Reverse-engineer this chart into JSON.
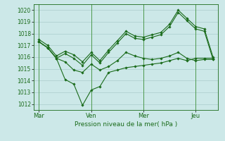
{
  "title": "Pression niveau de la mer( hPa )",
  "ylim": [
    1011.5,
    1020.5
  ],
  "yticks": [
    1012,
    1013,
    1014,
    1015,
    1016,
    1017,
    1018,
    1019,
    1020
  ],
  "bg_color": "#cce8e8",
  "grid_color": "#aacccc",
  "line_color": "#1a6b1a",
  "vline_color": "#4d9a4d",
  "day_labels": [
    "Mar",
    "Ven",
    "Mer",
    "Jeu"
  ],
  "day_positions": [
    0,
    3,
    6,
    9
  ],
  "xlim": [
    -0.3,
    10.3
  ],
  "series": [
    {
      "x": [
        0,
        0.5,
        1,
        1.5,
        2,
        2.5,
        3,
        3.5,
        4,
        4.5,
        5,
        5.5,
        6,
        6.5,
        7,
        7.5,
        8,
        8.5,
        9,
        9.5,
        10
      ],
      "y": [
        1017.5,
        1017.0,
        1016.1,
        1016.5,
        1016.2,
        1015.6,
        1016.4,
        1015.7,
        1016.6,
        1017.4,
        1018.2,
        1017.8,
        1017.7,
        1017.9,
        1018.1,
        1018.8,
        1020.0,
        1019.3,
        1018.6,
        1018.4,
        1016.0
      ]
    },
    {
      "x": [
        0,
        0.5,
        1,
        1.5,
        2,
        2.5,
        3,
        3.5,
        4,
        4.5,
        5,
        5.5,
        6,
        6.5,
        7,
        7.5,
        8,
        8.5,
        9,
        9.5,
        10
      ],
      "y": [
        1017.3,
        1016.8,
        1015.9,
        1016.3,
        1015.9,
        1015.3,
        1016.2,
        1015.5,
        1016.4,
        1017.2,
        1018.0,
        1017.6,
        1017.5,
        1017.7,
        1017.9,
        1018.6,
        1019.8,
        1019.1,
        1018.4,
        1018.2,
        1015.8
      ]
    },
    {
      "x": [
        0,
        0.5,
        1,
        1.5,
        2,
        2.5,
        3,
        3.5,
        4,
        4.5,
        5,
        5.5,
        6,
        6.5,
        7,
        7.5,
        8,
        8.5,
        9,
        9.5,
        10
      ],
      "y": [
        1017.3,
        1016.8,
        1015.9,
        1015.6,
        1014.9,
        1014.7,
        1015.4,
        1014.9,
        1015.2,
        1015.7,
        1016.4,
        1016.1,
        1015.9,
        1015.8,
        1015.9,
        1016.1,
        1016.4,
        1015.9,
        1015.7,
        1015.8,
        1015.8
      ]
    },
    {
      "x": [
        0,
        0.5,
        1,
        1.5,
        2,
        2.5,
        3,
        3.5,
        4,
        4.5,
        5,
        5.5,
        6,
        6.5,
        7,
        7.5,
        8,
        8.5,
        9,
        9.5,
        10
      ],
      "y": [
        1017.3,
        1016.8,
        1015.9,
        1014.1,
        1013.7,
        1011.9,
        1013.2,
        1013.5,
        1014.7,
        1014.9,
        1015.1,
        1015.2,
        1015.3,
        1015.4,
        1015.5,
        1015.7,
        1015.9,
        1015.7,
        1015.9,
        1015.9,
        1015.9
      ]
    }
  ]
}
